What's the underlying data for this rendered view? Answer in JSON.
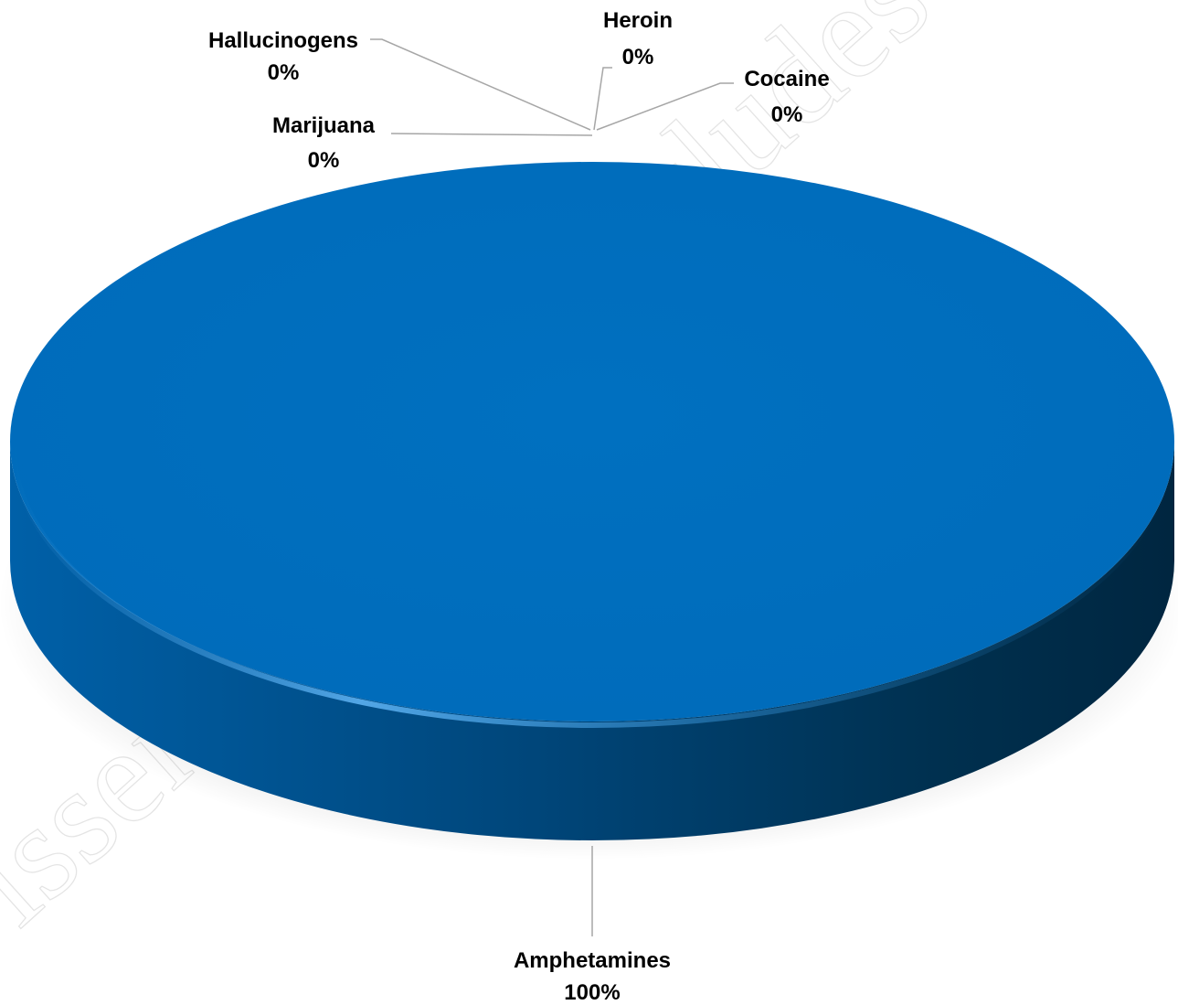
{
  "chart_data": {
    "type": "pie",
    "style": "3d",
    "slices": [
      {
        "name": "Amphetamines",
        "value": 100,
        "label": "100%",
        "color": "#0070c0"
      },
      {
        "name": "Marijuana",
        "value": 0,
        "label": "0%",
        "color": "#0070c0"
      },
      {
        "name": "Hallucinogens",
        "value": 0,
        "label": "0%",
        "color": "#0070c0"
      },
      {
        "name": "Heroin",
        "value": 0,
        "label": "0%",
        "color": "#0070c0"
      },
      {
        "name": "Cocaine",
        "value": 0,
        "label": "0%",
        "color": "#0070c0"
      }
    ],
    "legend": "none"
  },
  "watermarks": {
    "left": "Dissen",
    "right": "cludes"
  },
  "colors": {
    "top_face": "#0070c0",
    "side_light": "#005aa0",
    "side_dark": "#002a4a",
    "leader_line": "#a6a6a6"
  }
}
